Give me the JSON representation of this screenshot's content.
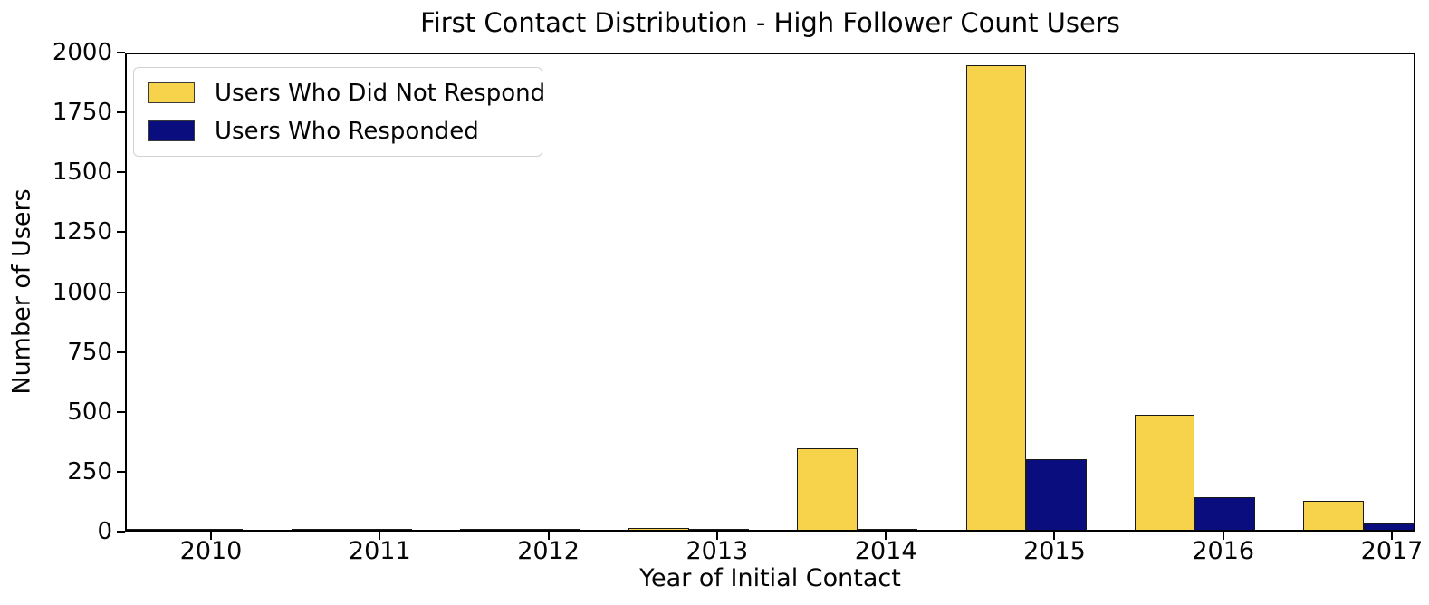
{
  "chart_data": {
    "type": "bar",
    "title": "First Contact Distribution - High Follower Count Users",
    "xlabel": "Year of Initial Contact",
    "ylabel": "Number of Users",
    "categories": [
      "2010",
      "2011",
      "2012",
      "2013",
      "2014",
      "2015",
      "2016",
      "2017"
    ],
    "series": [
      {
        "name": "Users Who Did Not Respond",
        "color": "#F6D34A",
        "values": [
          3,
          4,
          4,
          8,
          340,
          1940,
          480,
          122
        ]
      },
      {
        "name": "Users Who Responded",
        "color": "#0A0D7E",
        "values": [
          2,
          1,
          3,
          2,
          3,
          295,
          136,
          27
        ]
      }
    ],
    "ylim": [
      0,
      2000
    ],
    "yticks": [
      0,
      250,
      500,
      750,
      1000,
      1250,
      1500,
      1750,
      2000
    ],
    "legend_position": "upper left",
    "grid": false,
    "bar_edge_color": "#1a1a1a",
    "axis_color": "#000000",
    "background_color": "#ffffff"
  }
}
